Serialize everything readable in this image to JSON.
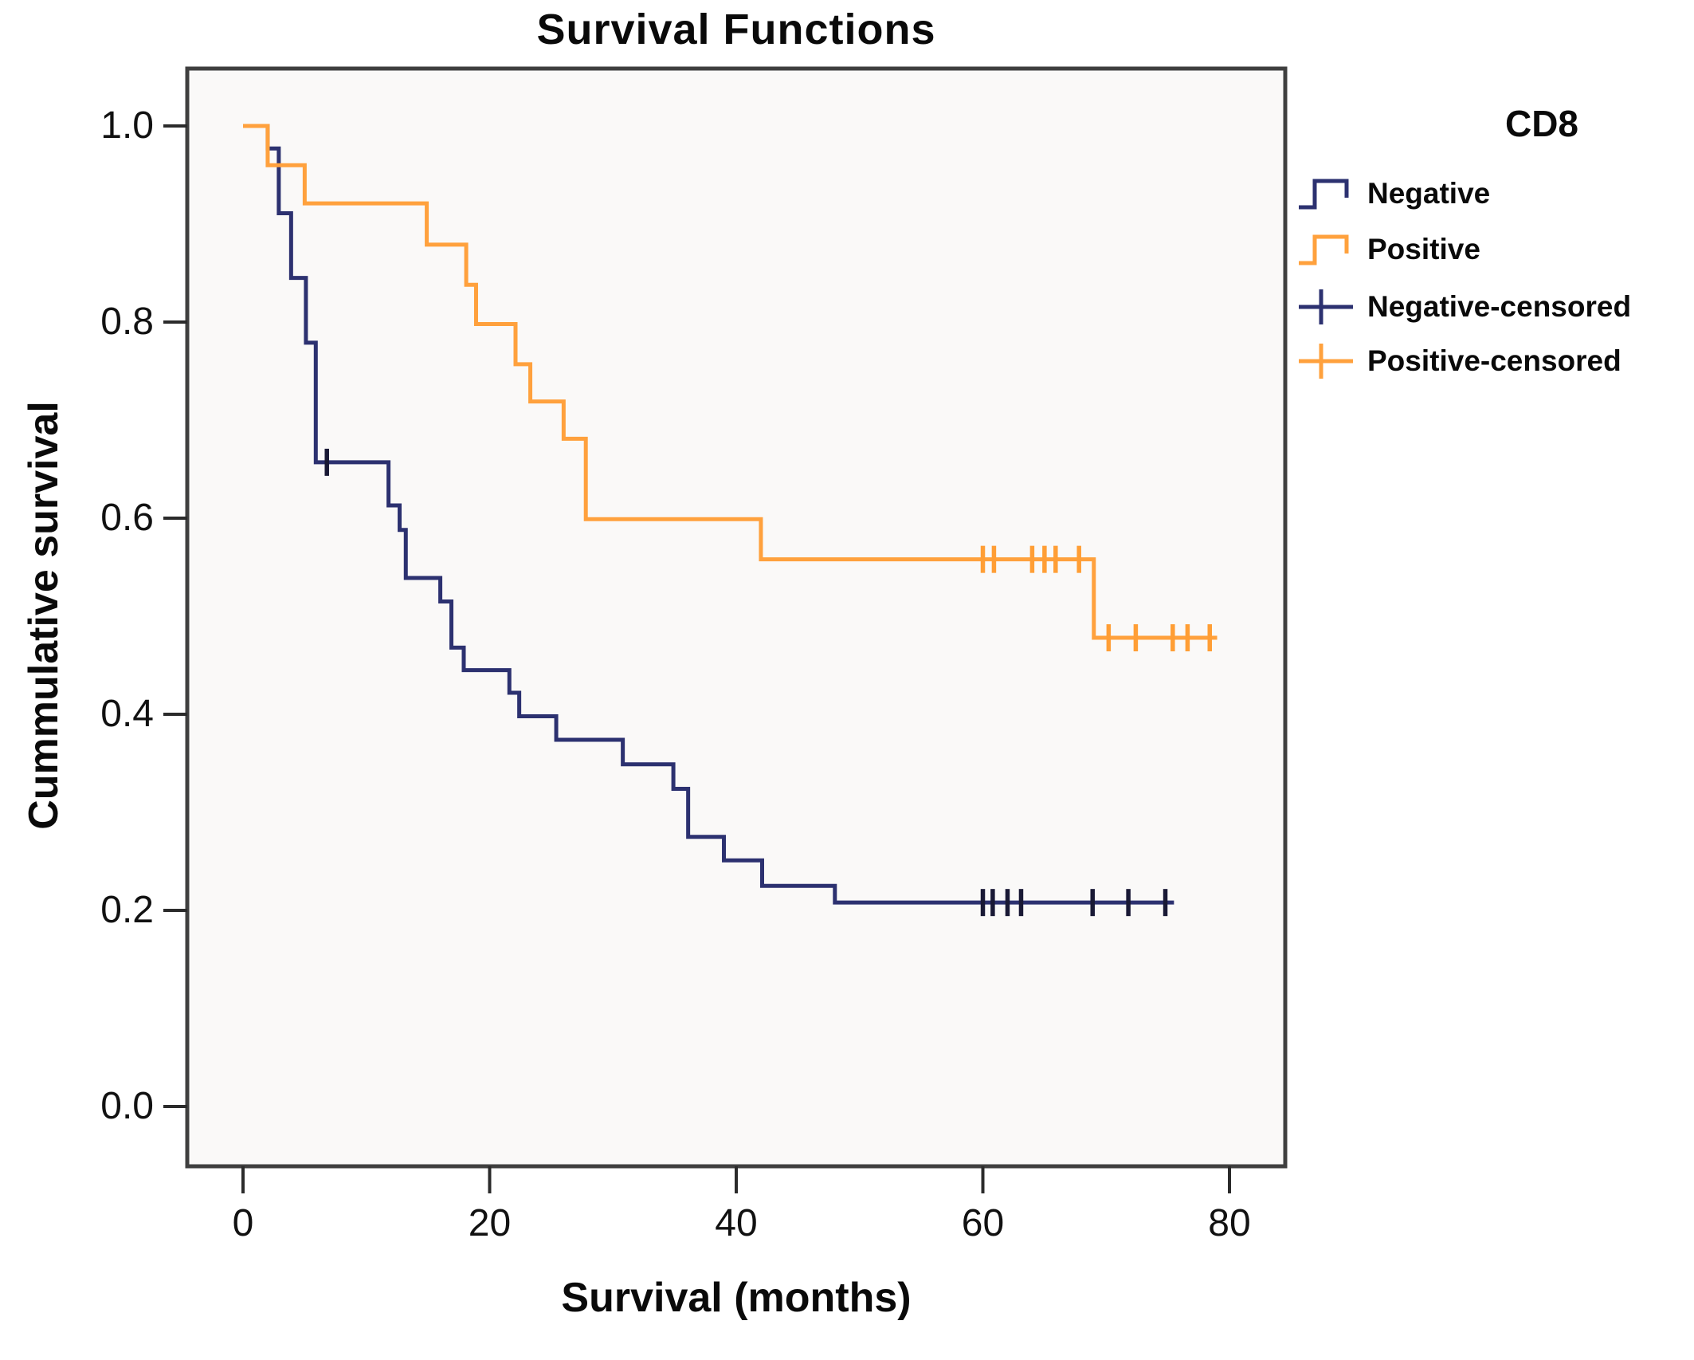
{
  "chart_data": {
    "type": "line",
    "subtype": "kaplan-meier-step",
    "title": "Survival Functions",
    "xlabel": "Survival (months)",
    "ylabel": "Cummulative survival",
    "x_tick_labels": [
      "0",
      "20",
      "40",
      "60",
      "80"
    ],
    "x_tick_values": [
      0,
      20,
      40,
      60,
      80
    ],
    "y_tick_labels": [
      "1.0",
      "0.8",
      "0.6",
      "0.4",
      "0.2",
      "0.0"
    ],
    "y_tick_values": [
      1.0,
      0.8,
      0.6,
      0.4,
      0.2,
      0.0
    ],
    "xlim": [
      -4.5,
      84.5
    ],
    "ylim": [
      -0.06,
      1.06
    ],
    "grid": false,
    "legend_position": "right",
    "plot_bg": "#faf9f8",
    "frame_color": "#3f3f3f",
    "legend": {
      "title": "CD8",
      "items": [
        {
          "label": "Negative",
          "symbol": "step",
          "series_index": 0
        },
        {
          "label": "Positive",
          "symbol": "step",
          "series_index": 1
        },
        {
          "label": "Negative-censored",
          "symbol": "plus",
          "series_index": 0
        },
        {
          "label": "Positive-censored",
          "symbol": "plus",
          "series_index": 1
        }
      ]
    },
    "series": [
      {
        "name": "Negative",
        "color": "#2c3170",
        "censor_color": "#191935",
        "start_value": 1.0,
        "drops": [
          [
            2.0,
            0.977
          ],
          [
            2.9,
            0.911
          ],
          [
            3.9,
            0.845
          ],
          [
            5.1,
            0.779
          ],
          [
            5.9,
            0.657
          ],
          [
            11.8,
            0.613
          ],
          [
            12.7,
            0.588
          ],
          [
            13.2,
            0.539
          ],
          [
            16.0,
            0.515
          ],
          [
            16.9,
            0.468
          ],
          [
            17.9,
            0.445
          ],
          [
            21.6,
            0.422
          ],
          [
            22.4,
            0.398
          ],
          [
            25.4,
            0.374
          ],
          [
            30.8,
            0.349
          ],
          [
            34.9,
            0.324
          ],
          [
            36.1,
            0.275
          ],
          [
            39.0,
            0.251
          ],
          [
            42.1,
            0.225
          ],
          [
            48.0,
            0.208
          ]
        ],
        "end_time": 75.5,
        "censored_times": [
          6.8,
          60.0,
          60.8,
          62.0,
          63.1,
          68.9,
          71.8,
          74.8
        ]
      },
      {
        "name": "Positive",
        "color": "#ffa13d",
        "censor_color": "#ff9e35",
        "start_value": 1.0,
        "drops": [
          [
            2.0,
            0.96
          ],
          [
            5.0,
            0.921
          ],
          [
            14.9,
            0.879
          ],
          [
            18.1,
            0.838
          ],
          [
            18.9,
            0.798
          ],
          [
            22.1,
            0.757
          ],
          [
            23.3,
            0.719
          ],
          [
            26.0,
            0.681
          ],
          [
            27.8,
            0.599
          ],
          [
            42.0,
            0.558
          ],
          [
            69.0,
            0.478
          ]
        ],
        "end_time": 79.0,
        "censored_times": [
          60.0,
          60.9,
          64.0,
          65.0,
          65.9,
          67.8,
          70.2,
          72.4,
          75.4,
          76.6,
          78.4
        ]
      }
    ]
  }
}
